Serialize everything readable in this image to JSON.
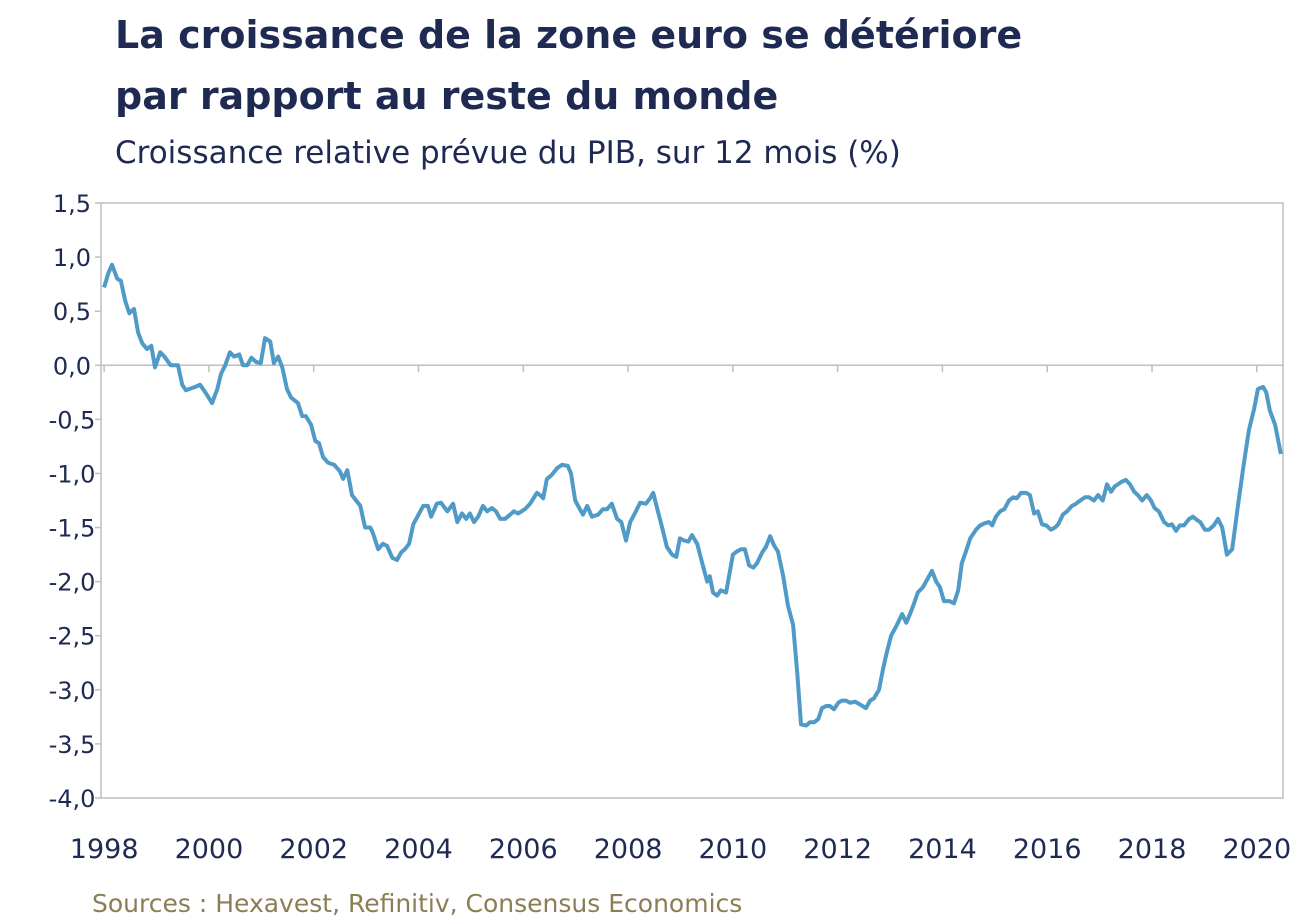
{
  "chart_data": {
    "type": "line",
    "title": [
      "La croissance de la zone euro se détériore",
      "par rapport au reste du monde"
    ],
    "subtitle": "Croissance relative prévue du PIB, sur 12 mois (%)",
    "source": "Sources : Hexavest, Refinitiv, Consensus Economics",
    "xlim": [
      1997.94,
      2020.5
    ],
    "xticks": [
      1998,
      2000,
      2002,
      2004,
      2006,
      2008,
      2010,
      2012,
      2014,
      2016,
      2018,
      2020
    ],
    "ylim": [
      -4,
      1.5
    ],
    "yticks": [
      {
        "value": -4,
        "label": "-4,0"
      },
      {
        "value": -3.5,
        "label": "-3,5"
      },
      {
        "value": -3,
        "label": "-3,0"
      },
      {
        "value": -2.5,
        "label": "-2,5"
      },
      {
        "value": -2,
        "label": "-2,0"
      },
      {
        "value": -1.5,
        "label": "-1,5"
      },
      {
        "value": -1,
        "label": "-1,0"
      },
      {
        "value": -0.5,
        "label": "-0,5"
      },
      {
        "value": 0,
        "label": "0,0"
      },
      {
        "value": 0.5,
        "label": "0,5"
      },
      {
        "value": 1,
        "label": "1,0"
      },
      {
        "value": 1.5,
        "label": "1,5"
      }
    ],
    "series": [
      {
        "color": "#4f9ac6",
        "x": [
          1998.0,
          1998.08,
          1998.15,
          1998.25,
          1998.32,
          1998.4,
          1998.48,
          1998.57,
          1998.65,
          1998.73,
          1998.82,
          1998.9,
          1998.97,
          1999.07,
          1999.15,
          1999.27,
          1999.41,
          1999.49,
          1999.56,
          1999.74,
          1999.83,
          1999.93,
          2000.06,
          2000.16,
          2000.23,
          2000.31,
          2000.4,
          2000.48,
          2000.58,
          2000.65,
          2000.73,
          2000.81,
          2000.9,
          2000.99,
          2001.07,
          2001.17,
          2001.24,
          2001.32,
          2001.4,
          2001.49,
          2001.57,
          2001.7,
          2001.78,
          2001.85,
          2001.95,
          2002.03,
          2002.1,
          2002.18,
          2002.27,
          2002.39,
          2002.5,
          2002.56,
          2002.64,
          2002.73,
          2002.89,
          2002.98,
          2003.08,
          2003.13,
          2003.23,
          2003.32,
          2003.4,
          2003.5,
          2003.59,
          2003.67,
          2003.74,
          2003.82,
          2003.9,
          2004.09,
          2004.18,
          2004.24,
          2004.35,
          2004.43,
          2004.55,
          2004.66,
          2004.74,
          2004.83,
          2004.91,
          2004.98,
          2005.06,
          2005.14,
          2005.23,
          2005.31,
          2005.4,
          2005.48,
          2005.56,
          2005.65,
          2005.75,
          2005.82,
          2005.9,
          2006.03,
          2006.13,
          2006.26,
          2006.32,
          2006.38,
          2006.45,
          2006.53,
          2006.65,
          2006.74,
          2006.85,
          2006.91,
          2006.99,
          2007.08,
          2007.14,
          2007.22,
          2007.31,
          2007.43,
          2007.52,
          2007.6,
          2007.69,
          2007.79,
          2007.87,
          2007.96,
          2008.04,
          2008.15,
          2008.23,
          2008.34,
          2008.42,
          2008.48,
          2008.57,
          2008.65,
          2008.74,
          2008.84,
          2008.92,
          2008.99,
          2009.07,
          2009.15,
          2009.22,
          2009.32,
          2009.41,
          2009.51,
          2009.56,
          2009.62,
          2009.7,
          2009.77,
          2009.87,
          2010.0,
          2010.08,
          2010.16,
          2010.23,
          2010.31,
          2010.39,
          2010.46,
          2010.56,
          2010.63,
          2010.71,
          2010.79,
          2010.86,
          2010.96,
          2011.05,
          2011.15,
          2011.23,
          2011.3,
          2011.4,
          2011.47,
          2011.55,
          2011.63,
          2011.7,
          2011.78,
          2011.85,
          2011.93,
          2012.01,
          2012.08,
          2012.16,
          2012.24,
          2012.33,
          2012.41,
          2012.54,
          2012.62,
          2012.69,
          2012.79,
          2012.87,
          2012.94,
          2013.02,
          2013.13,
          2013.23,
          2013.31,
          2013.38,
          2013.46,
          2013.53,
          2013.63,
          2013.71,
          2013.8,
          2013.88,
          2013.95,
          2014.03,
          2014.13,
          2014.22,
          2014.3,
          2014.37,
          2014.45,
          2014.53,
          2014.64,
          2014.72,
          2014.81,
          2014.89,
          2014.95,
          2015.02,
          2015.1,
          2015.18,
          2015.27,
          2015.35,
          2015.42,
          2015.5,
          2015.6,
          2015.67,
          2015.75,
          2015.82,
          2015.9,
          2015.98,
          2016.07,
          2016.15,
          2016.21,
          2016.3,
          2016.38,
          2016.47,
          2016.55,
          2016.63,
          2016.72,
          2016.8,
          2016.89,
          2016.97,
          2017.06,
          2017.14,
          2017.22,
          2017.29,
          2017.41,
          2017.5,
          2017.58,
          2017.66,
          2017.73,
          2017.81,
          2017.9,
          2017.98,
          2018.05,
          2018.13,
          2018.23,
          2018.31,
          2018.38,
          2018.46,
          2018.53,
          2018.61,
          2018.71,
          2018.78,
          2018.86,
          2018.92,
          2019.01,
          2019.09,
          2019.18,
          2019.26,
          2019.34,
          2019.43,
          2019.53,
          2019.64,
          2019.74,
          2019.85,
          2019.95,
          2020.02,
          2020.12,
          2020.18,
          2020.25,
          2020.35,
          2020.46
        ],
        "values": [
          0.72,
          0.85,
          0.93,
          0.8,
          0.78,
          0.6,
          0.48,
          0.52,
          0.3,
          0.2,
          0.15,
          0.18,
          -0.02,
          0.12,
          0.08,
          0.0,
          0.0,
          -0.18,
          -0.23,
          -0.2,
          -0.18,
          -0.25,
          -0.35,
          -0.22,
          -0.08,
          0.0,
          0.12,
          0.08,
          0.1,
          0.0,
          0.0,
          0.07,
          0.03,
          0.02,
          0.25,
          0.22,
          0.02,
          0.08,
          -0.02,
          -0.22,
          -0.3,
          -0.35,
          -0.47,
          -0.47,
          -0.55,
          -0.7,
          -0.72,
          -0.85,
          -0.9,
          -0.92,
          -0.98,
          -1.05,
          -0.97,
          -1.2,
          -1.3,
          -1.5,
          -1.5,
          -1.55,
          -1.7,
          -1.65,
          -1.67,
          -1.78,
          -1.8,
          -1.73,
          -1.7,
          -1.65,
          -1.47,
          -1.3,
          -1.3,
          -1.4,
          -1.28,
          -1.27,
          -1.35,
          -1.28,
          -1.45,
          -1.37,
          -1.42,
          -1.37,
          -1.45,
          -1.4,
          -1.3,
          -1.35,
          -1.32,
          -1.35,
          -1.42,
          -1.42,
          -1.38,
          -1.35,
          -1.37,
          -1.33,
          -1.28,
          -1.18,
          -1.2,
          -1.23,
          -1.05,
          -1.02,
          -0.95,
          -0.92,
          -0.93,
          -1.0,
          -1.25,
          -1.33,
          -1.38,
          -1.3,
          -1.4,
          -1.38,
          -1.33,
          -1.33,
          -1.28,
          -1.42,
          -1.45,
          -1.62,
          -1.45,
          -1.35,
          -1.27,
          -1.28,
          -1.23,
          -1.18,
          -1.35,
          -1.5,
          -1.68,
          -1.75,
          -1.77,
          -1.6,
          -1.62,
          -1.63,
          -1.57,
          -1.65,
          -1.82,
          -2.0,
          -1.95,
          -2.1,
          -2.13,
          -2.08,
          -2.1,
          -1.75,
          -1.72,
          -1.7,
          -1.7,
          -1.85,
          -1.87,
          -1.83,
          -1.73,
          -1.68,
          -1.58,
          -1.67,
          -1.72,
          -1.95,
          -2.22,
          -2.4,
          -2.85,
          -3.32,
          -3.33,
          -3.3,
          -3.3,
          -3.27,
          -3.17,
          -3.15,
          -3.15,
          -3.18,
          -3.12,
          -3.1,
          -3.1,
          -3.12,
          -3.11,
          -3.13,
          -3.17,
          -3.1,
          -3.08,
          -3.0,
          -2.8,
          -2.65,
          -2.5,
          -2.4,
          -2.3,
          -2.38,
          -2.3,
          -2.2,
          -2.1,
          -2.05,
          -1.98,
          -1.9,
          -2.0,
          -2.05,
          -2.18,
          -2.18,
          -2.2,
          -2.08,
          -1.83,
          -1.72,
          -1.6,
          -1.52,
          -1.48,
          -1.46,
          -1.45,
          -1.48,
          -1.4,
          -1.35,
          -1.33,
          -1.25,
          -1.22,
          -1.23,
          -1.18,
          -1.18,
          -1.2,
          -1.37,
          -1.35,
          -1.47,
          -1.48,
          -1.52,
          -1.5,
          -1.47,
          -1.38,
          -1.35,
          -1.3,
          -1.28,
          -1.25,
          -1.22,
          -1.22,
          -1.25,
          -1.2,
          -1.25,
          -1.1,
          -1.17,
          -1.12,
          -1.08,
          -1.06,
          -1.1,
          -1.17,
          -1.2,
          -1.25,
          -1.2,
          -1.25,
          -1.32,
          -1.35,
          -1.45,
          -1.48,
          -1.47,
          -1.53,
          -1.48,
          -1.48,
          -1.42,
          -1.4,
          -1.43,
          -1.45,
          -1.52,
          -1.52,
          -1.48,
          -1.42,
          -1.5,
          -1.75,
          -1.7,
          -1.3,
          -0.95,
          -0.6,
          -0.4,
          -0.22,
          -0.2,
          -0.25,
          -0.42,
          -0.55,
          -0.82
        ]
      }
    ]
  }
}
